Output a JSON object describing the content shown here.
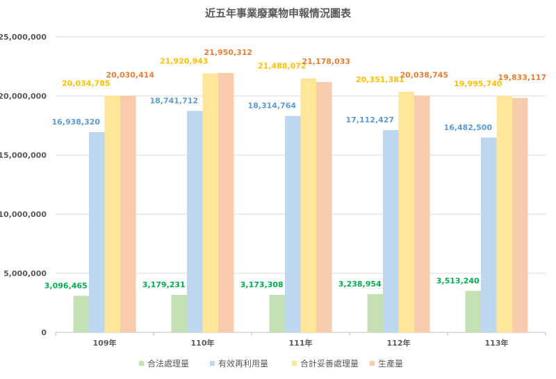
{
  "chart_data": {
    "type": "bar",
    "title": "近五年事業廢棄物申報情況圖表",
    "categories": [
      "109年",
      "110年",
      "111年",
      "112年",
      "113年"
    ],
    "ylim": [
      0,
      25000000
    ],
    "yticks": [
      0,
      5000000,
      10000000,
      15000000,
      20000000,
      25000000
    ],
    "ytick_labels": [
      "0",
      "5,000,000",
      "10,000,000",
      "15,000,000",
      "20,000,000",
      "25,000,000"
    ],
    "grid": true,
    "legend_position": "bottom",
    "series": [
      {
        "name": "合法處理量",
        "color": "#c5e0b4",
        "label_color": "#00b050",
        "values": [
          3096465,
          3179231,
          3173308,
          3238954,
          3513240
        ]
      },
      {
        "name": "有效再利用量",
        "color": "#bdd7ee",
        "label_color": "#5b9bd5",
        "values": [
          16938320,
          18741712,
          18314764,
          17112427,
          16482500
        ]
      },
      {
        "name": "合計妥善處理量",
        "color": "#ffe699",
        "label_color": "#ffc000",
        "values": [
          20034785,
          21920943,
          21488072,
          20351381,
          19995740
        ]
      },
      {
        "name": "生產量",
        "color": "#f8cbad",
        "label_color": "#ed7d31",
        "values": [
          20030414,
          21950312,
          21178033,
          20038745,
          19833117
        ]
      }
    ]
  }
}
